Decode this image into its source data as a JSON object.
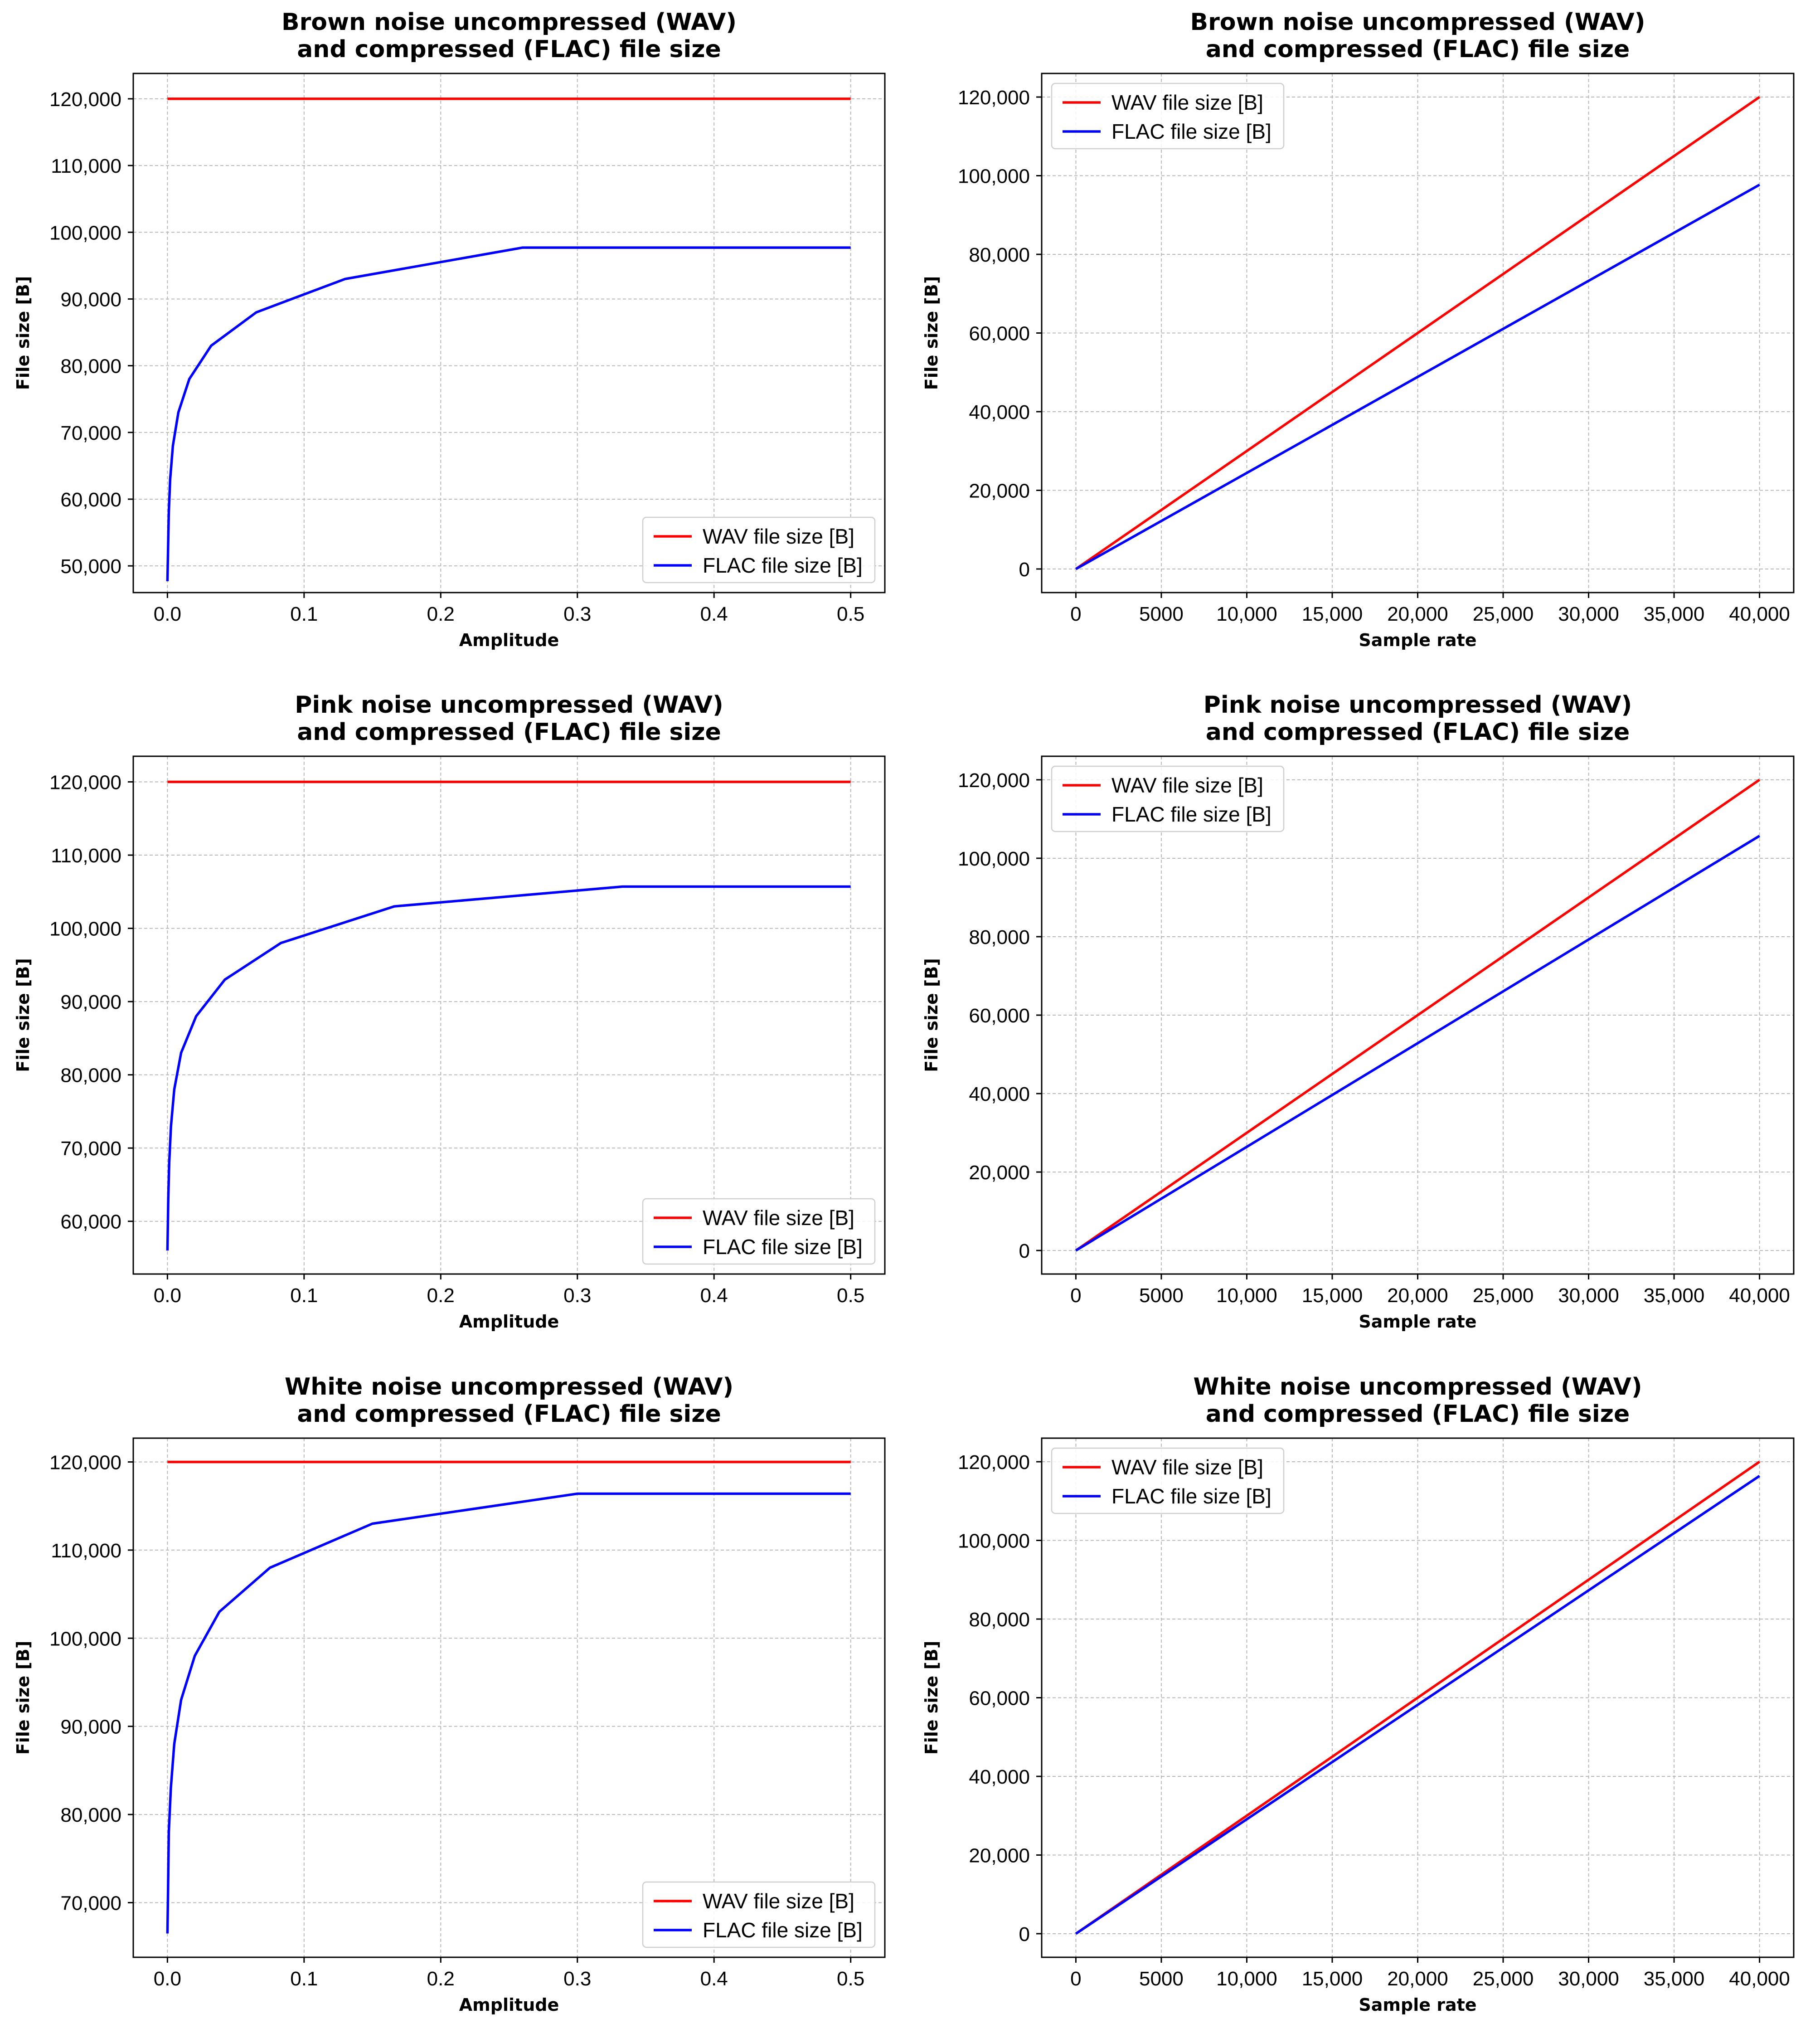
{
  "chart_data": [
    {
      "type": "line",
      "title": [
        "Brown noise uncompressed (WAV)",
        "and compressed (FLAC) file size"
      ],
      "xlabel": "Amplitude",
      "ylabel": "File size [B]",
      "xlim": [
        -0.025,
        0.525
      ],
      "ylim": [
        46000,
        123800
      ],
      "xticks": [
        0.0,
        0.1,
        0.2,
        0.3,
        0.4,
        0.5
      ],
      "xtick_labels": [
        "0.0",
        "0.1",
        "0.2",
        "0.3",
        "0.4",
        "0.5"
      ],
      "yticks": [
        50000,
        60000,
        70000,
        80000,
        90000,
        100000,
        110000,
        120000
      ],
      "ytick_labels": [
        "50,000",
        "60,000",
        "70,000",
        "80,000",
        "90,000",
        "100,000",
        "110,000",
        "120,000"
      ],
      "grid": true,
      "legend_position": "lower-right",
      "series": [
        {
          "name": "WAV file size [B]",
          "color": "#ff0000",
          "x": [
            0.0,
            0.5
          ],
          "y": [
            120000,
            120000
          ]
        },
        {
          "name": "FLAC file size [B]",
          "color": "#0000ff",
          "x": [
            0.0,
            0.0005,
            0.001,
            0.002,
            0.004,
            0.008,
            0.016,
            0.032,
            0.065,
            0.13,
            0.26,
            0.5
          ],
          "y": [
            47700,
            53000,
            58000,
            63000,
            68000,
            73000,
            78000,
            83000,
            88000,
            93000,
            97700,
            97700
          ]
        }
      ]
    },
    {
      "type": "line",
      "title": [
        "Brown noise uncompressed (WAV)",
        "and compressed (FLAC) file size"
      ],
      "xlabel": "Sample rate",
      "ylabel": "File size [B]",
      "xlim": [
        -2000,
        42000
      ],
      "ylim": [
        -6000,
        126000
      ],
      "xticks": [
        0,
        5000,
        10000,
        15000,
        20000,
        25000,
        30000,
        35000,
        40000
      ],
      "xtick_labels": [
        "0",
        "5000",
        "10,000",
        "15,000",
        "20,000",
        "25,000",
        "30,000",
        "35,000",
        "40,000"
      ],
      "yticks": [
        0,
        20000,
        40000,
        60000,
        80000,
        100000,
        120000
      ],
      "ytick_labels": [
        "0",
        "20,000",
        "40,000",
        "60,000",
        "80,000",
        "100,000",
        "120,000"
      ],
      "grid": true,
      "legend_position": "upper-left",
      "series": [
        {
          "name": "WAV file size [B]",
          "color": "#ff0000",
          "x": [
            0,
            40000
          ],
          "y": [
            0,
            120000
          ]
        },
        {
          "name": "FLAC file size [B]",
          "color": "#0000ff",
          "x": [
            0,
            40000
          ],
          "y": [
            0,
            97700
          ]
        }
      ]
    },
    {
      "type": "line",
      "title": [
        "Pink noise uncompressed (WAV)",
        "and compressed (FLAC) file size"
      ],
      "xlabel": "Amplitude",
      "ylabel": "File size [B]",
      "xlim": [
        -0.025,
        0.525
      ],
      "ylim": [
        52800,
        123500
      ],
      "xticks": [
        0.0,
        0.1,
        0.2,
        0.3,
        0.4,
        0.5
      ],
      "xtick_labels": [
        "0.0",
        "0.1",
        "0.2",
        "0.3",
        "0.4",
        "0.5"
      ],
      "yticks": [
        60000,
        70000,
        80000,
        90000,
        100000,
        110000,
        120000
      ],
      "ytick_labels": [
        "60,000",
        "70,000",
        "80,000",
        "90,000",
        "100,000",
        "110,000",
        "120,000"
      ],
      "grid": true,
      "legend_position": "lower-right",
      "series": [
        {
          "name": "WAV file size [B]",
          "color": "#ff0000",
          "x": [
            0.0,
            0.5
          ],
          "y": [
            120000,
            120000
          ]
        },
        {
          "name": "FLAC file size [B]",
          "color": "#0000ff",
          "x": [
            0.0,
            0.0006,
            0.0013,
            0.0026,
            0.005,
            0.01,
            0.021,
            0.042,
            0.083,
            0.166,
            0.333,
            0.5
          ],
          "y": [
            56000,
            63000,
            68000,
            73000,
            78000,
            83000,
            88000,
            93000,
            98000,
            103000,
            105700,
            105700
          ]
        }
      ]
    },
    {
      "type": "line",
      "title": [
        "Pink noise uncompressed (WAV)",
        "and compressed (FLAC) file size"
      ],
      "xlabel": "Sample rate",
      "ylabel": "File size [B]",
      "xlim": [
        -2000,
        42000
      ],
      "ylim": [
        -6000,
        126000
      ],
      "xticks": [
        0,
        5000,
        10000,
        15000,
        20000,
        25000,
        30000,
        35000,
        40000
      ],
      "xtick_labels": [
        "0",
        "5000",
        "10,000",
        "15,000",
        "20,000",
        "25,000",
        "30,000",
        "35,000",
        "40,000"
      ],
      "yticks": [
        0,
        20000,
        40000,
        60000,
        80000,
        100000,
        120000
      ],
      "ytick_labels": [
        "0",
        "20,000",
        "40,000",
        "60,000",
        "80,000",
        "100,000",
        "120,000"
      ],
      "grid": true,
      "legend_position": "upper-left",
      "series": [
        {
          "name": "WAV file size [B]",
          "color": "#ff0000",
          "x": [
            0,
            40000
          ],
          "y": [
            0,
            120000
          ]
        },
        {
          "name": "FLAC file size [B]",
          "color": "#0000ff",
          "x": [
            0,
            40000
          ],
          "y": [
            0,
            105700
          ]
        }
      ]
    },
    {
      "type": "line",
      "title": [
        "White noise uncompressed (WAV)",
        "and compressed (FLAC) file size"
      ],
      "xlabel": "Amplitude",
      "ylabel": "File size [B]",
      "xlim": [
        -0.025,
        0.525
      ],
      "ylim": [
        63800,
        122700
      ],
      "xticks": [
        0.0,
        0.1,
        0.2,
        0.3,
        0.4,
        0.5
      ],
      "xtick_labels": [
        "0.0",
        "0.1",
        "0.2",
        "0.3",
        "0.4",
        "0.5"
      ],
      "yticks": [
        70000,
        80000,
        90000,
        100000,
        110000,
        120000
      ],
      "ytick_labels": [
        "70,000",
        "80,000",
        "90,000",
        "100,000",
        "110,000",
        "120,000"
      ],
      "grid": true,
      "legend_position": "lower-right",
      "series": [
        {
          "name": "WAV file size [B]",
          "color": "#ff0000",
          "x": [
            0.0,
            0.5
          ],
          "y": [
            120000,
            120000
          ]
        },
        {
          "name": "FLAC file size [B]",
          "color": "#0000ff",
          "x": [
            0.0,
            0.0005,
            0.001,
            0.0025,
            0.005,
            0.01,
            0.02,
            0.038,
            0.075,
            0.15,
            0.3,
            0.5
          ],
          "y": [
            66500,
            72000,
            78000,
            83000,
            88000,
            93000,
            98000,
            103000,
            108000,
            113000,
            116400,
            116400
          ]
        }
      ]
    },
    {
      "type": "line",
      "title": [
        "White noise uncompressed (WAV)",
        "and compressed (FLAC) file size"
      ],
      "xlabel": "Sample rate",
      "ylabel": "File size [B]",
      "xlim": [
        -2000,
        42000
      ],
      "ylim": [
        -6000,
        126000
      ],
      "xticks": [
        0,
        5000,
        10000,
        15000,
        20000,
        25000,
        30000,
        35000,
        40000
      ],
      "xtick_labels": [
        "0",
        "5000",
        "10,000",
        "15,000",
        "20,000",
        "25,000",
        "30,000",
        "35,000",
        "40,000"
      ],
      "yticks": [
        0,
        20000,
        40000,
        60000,
        80000,
        100000,
        120000
      ],
      "ytick_labels": [
        "0",
        "20,000",
        "40,000",
        "60,000",
        "80,000",
        "100,000",
        "120,000"
      ],
      "grid": true,
      "legend_position": "upper-left",
      "series": [
        {
          "name": "WAV file size [B]",
          "color": "#ff0000",
          "x": [
            0,
            40000
          ],
          "y": [
            0,
            120000
          ]
        },
        {
          "name": "FLAC file size [B]",
          "color": "#0000ff",
          "x": [
            0,
            40000
          ],
          "y": [
            0,
            116400
          ]
        }
      ]
    }
  ]
}
